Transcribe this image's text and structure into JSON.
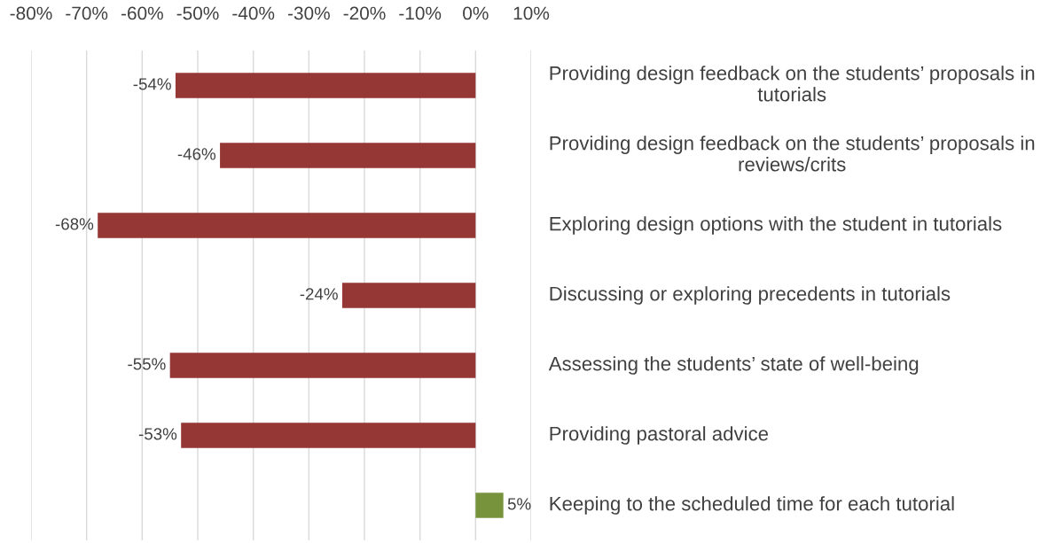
{
  "chart_data": {
    "type": "bar",
    "orientation": "horizontal",
    "categories": [
      "Providing design feedback on the students’ proposals in tutorials",
      "Providing design feedback on the students’ proposals in reviews/crits",
      "Exploring design options with the student in tutorials",
      "Discussing or exploring precedents in tutorials",
      "Assessing the students’ state of well-being",
      "Providing pastoral advice",
      "Keeping to the scheduled time for each tutorial"
    ],
    "values": [
      -54,
      -46,
      -68,
      -24,
      -55,
      -53,
      5
    ],
    "colors": [
      "#953735",
      "#953735",
      "#953735",
      "#953735",
      "#953735",
      "#953735",
      "#77933c"
    ],
    "xlim": [
      -80,
      10
    ],
    "xticks": [
      {
        "value": -80,
        "label": "-80%"
      },
      {
        "value": -70,
        "label": "-70%"
      },
      {
        "value": -60,
        "label": "-60%"
      },
      {
        "value": -50,
        "label": "-50%"
      },
      {
        "value": -40,
        "label": "-40%"
      },
      {
        "value": -30,
        "label": "-30%"
      },
      {
        "value": -20,
        "label": "-20%"
      },
      {
        "value": -10,
        "label": "-10%"
      },
      {
        "value": 0,
        "label": "0%"
      },
      {
        "value": 10,
        "label": "10%"
      }
    ],
    "value_labels": [
      "-54%",
      "-46%",
      "-68%",
      "-24%",
      "-55%",
      "-53%",
      "5%"
    ],
    "grid": "x"
  }
}
